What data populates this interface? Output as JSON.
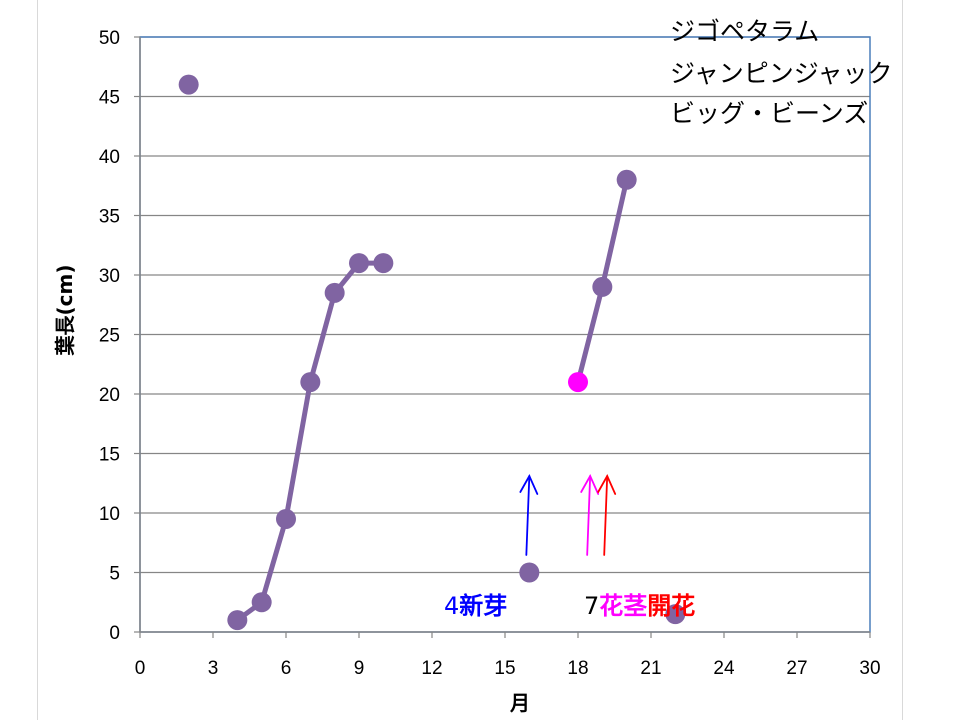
{
  "chart_data": {
    "type": "line",
    "title_lines": [
      "ジゴペタラム",
      "ジャンピンジャック",
      "ビッグ・ビーンズ"
    ],
    "xlabel": "月",
    "ylabel": "葉長(cm)",
    "xlim": [
      0,
      30
    ],
    "ylim": [
      0,
      50
    ],
    "xticks": [
      0,
      3,
      6,
      9,
      12,
      15,
      18,
      21,
      24,
      27,
      30
    ],
    "yticks": [
      0,
      5,
      10,
      15,
      20,
      25,
      30,
      35,
      40,
      45,
      50
    ],
    "grid": true,
    "series": [
      {
        "color": "#8064a2",
        "connected": false,
        "points": [
          [
            2,
            46
          ]
        ]
      },
      {
        "color": "#8064a2",
        "connected": true,
        "points": [
          [
            4,
            1
          ],
          [
            5,
            2.5
          ],
          [
            6,
            9.5
          ],
          [
            7,
            21
          ],
          [
            8,
            28.5
          ],
          [
            9,
            31
          ],
          [
            10,
            31
          ]
        ]
      },
      {
        "color": "#8064a2",
        "connected": false,
        "points": [
          [
            16,
            5
          ]
        ]
      },
      {
        "color": "#8064a2",
        "connected": true,
        "points": [
          [
            18,
            21
          ],
          [
            19,
            29
          ],
          [
            20,
            38
          ]
        ]
      },
      {
        "color": "#8064a2",
        "connected": false,
        "points": [
          [
            22,
            1.5
          ]
        ]
      }
    ],
    "highlight_point": {
      "x": 18,
      "y": 21,
      "color": "#ff00ff"
    },
    "annotations": [
      {
        "number": "4",
        "label": "新芽",
        "color": "#0000ff",
        "at_month": 16
      },
      {
        "number": "7",
        "label_stem": "花茎",
        "stem_color": "#ff00ff",
        "label_bloom": "開花",
        "bloom_color": "#ff0000",
        "at_month": 18.5
      }
    ],
    "arrows": [
      {
        "color": "#0000ff",
        "at_month": 16
      },
      {
        "color": "#ff00ff",
        "at_month": 18.5
      },
      {
        "color": "#ff0000",
        "at_month": 19.2
      }
    ]
  }
}
